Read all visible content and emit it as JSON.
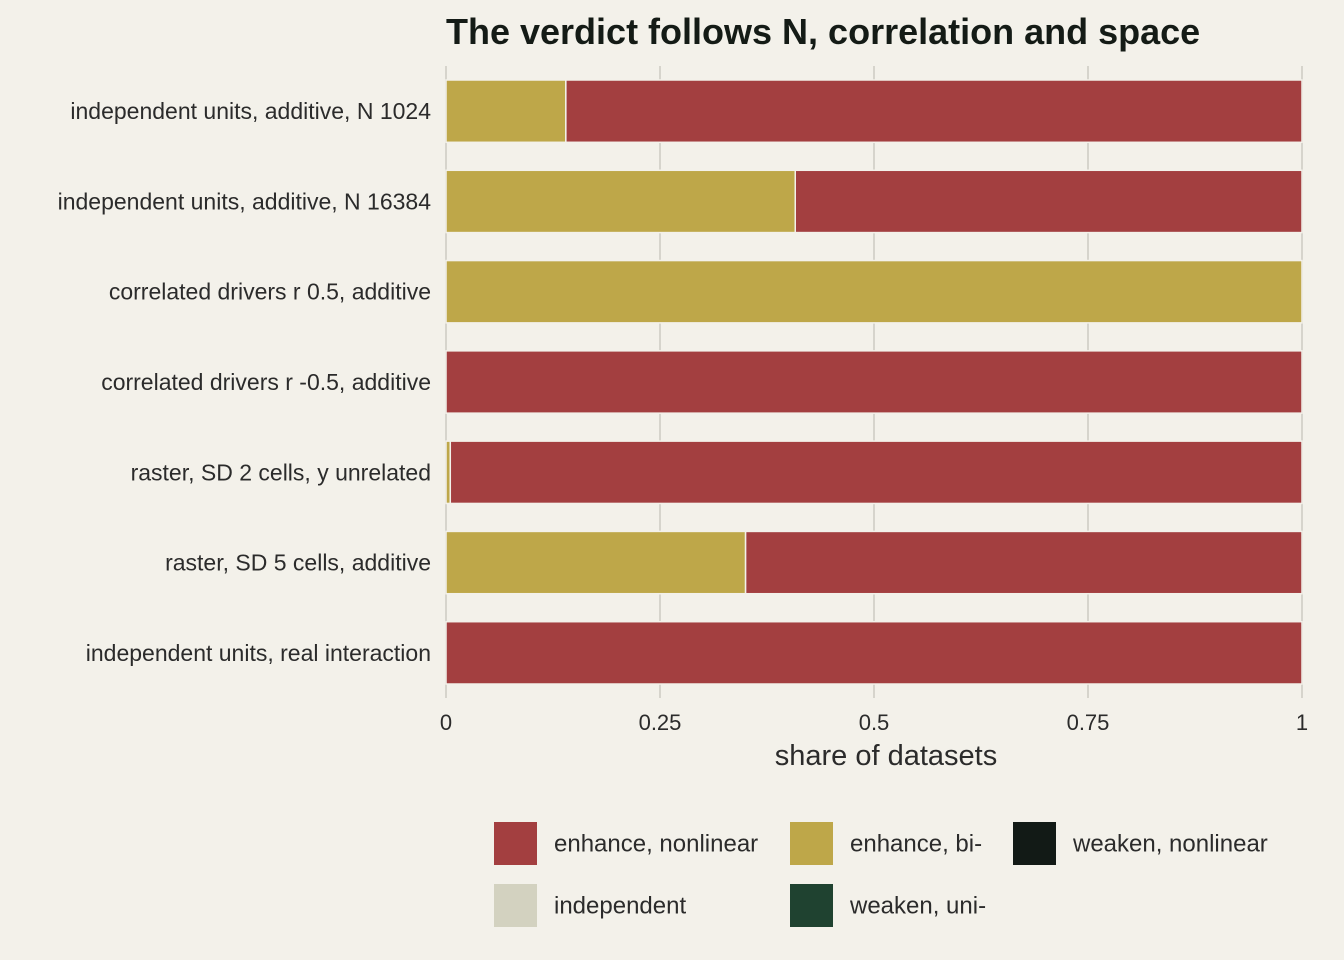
{
  "chart_data": {
    "type": "bar",
    "orientation": "horizontal",
    "stacked": true,
    "title": "The verdict follows N, correlation and space",
    "xlabel": "share of datasets",
    "ylabel": "",
    "xlim": [
      0,
      1
    ],
    "x_ticks": [
      0,
      0.25,
      0.5,
      0.75,
      1
    ],
    "x_tick_labels": [
      "0",
      "0.25",
      "0.5",
      "0.75",
      "1"
    ],
    "grid": "vertical major gridlines",
    "legend_position": "bottom",
    "categories": [
      "independent units, additive, N 1024",
      "independent units, additive, N 16384",
      "correlated drivers r 0.5, additive",
      "correlated drivers r -0.5, additive",
      "raster, SD 2 cells, y unrelated",
      "raster, SD 5 cells, additive",
      "independent units, real interaction"
    ],
    "series": [
      {
        "name": "enhance, bi-",
        "color": "#bea749",
        "values": [
          0.14,
          0.408,
          1.0,
          0.0,
          0.005,
          0.35,
          0.0
        ]
      },
      {
        "name": "enhance, nonlinear",
        "color": "#a33f40",
        "values": [
          0.86,
          0.592,
          0.0,
          1.0,
          0.995,
          0.65,
          1.0
        ]
      },
      {
        "name": "weaken, nonlinear",
        "color": "#121a16",
        "values": [
          0,
          0,
          0,
          0,
          0,
          0,
          0
        ]
      },
      {
        "name": "independent",
        "color": "#d3d2c0",
        "values": [
          0,
          0,
          0,
          0,
          0,
          0,
          0
        ]
      },
      {
        "name": "weaken, uni-",
        "color": "#1f4230",
        "values": [
          0,
          0,
          0,
          0,
          0,
          0,
          0
        ]
      }
    ],
    "stack_order": [
      "enhance, bi-",
      "enhance, nonlinear",
      "weaken, nonlinear",
      "independent",
      "weaken, uni-"
    ],
    "legend_order": [
      "enhance, nonlinear",
      "enhance, bi-",
      "weaken, nonlinear",
      "independent",
      "weaken, uni-"
    ]
  }
}
